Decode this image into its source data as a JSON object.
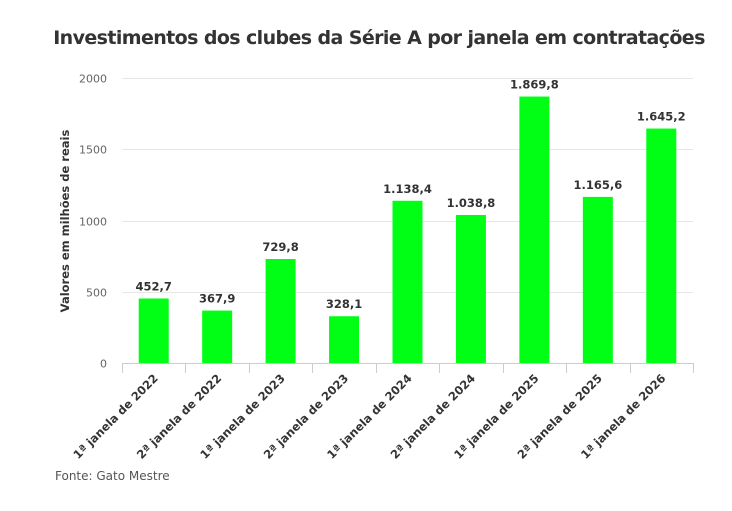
{
  "chart_data": {
    "type": "bar",
    "title": "Investimentos dos clubes da Série A por janela em contratações",
    "xlabel": "",
    "ylabel": "Valores em milhões de reais",
    "ylim": [
      0,
      2000
    ],
    "yticks": [
      0,
      500,
      1000,
      1500,
      2000
    ],
    "grid": true,
    "legend": "none",
    "bar_color": "#00ff15",
    "categories": [
      "1ª janela de 2022",
      "2ª janela de 2022",
      "1ª janela de 2023",
      "2ª janela de 2023",
      "1ª janela de 2024",
      "2ª janela de 2024",
      "1ª janela de 2025",
      "2ª janela de 2025",
      "1ª janela de 2026"
    ],
    "values": [
      452.7,
      367.9,
      729.8,
      328.1,
      1138.4,
      1038.8,
      1869.8,
      1165.6,
      1645.2
    ],
    "data_labels": [
      "452,7",
      "367,9",
      "729,8",
      "328,1",
      "1.138,4",
      "1.038,8",
      "1.869,8",
      "1.165,6",
      "1.645,2"
    ],
    "source": "Fonte: Gato Mestre"
  }
}
